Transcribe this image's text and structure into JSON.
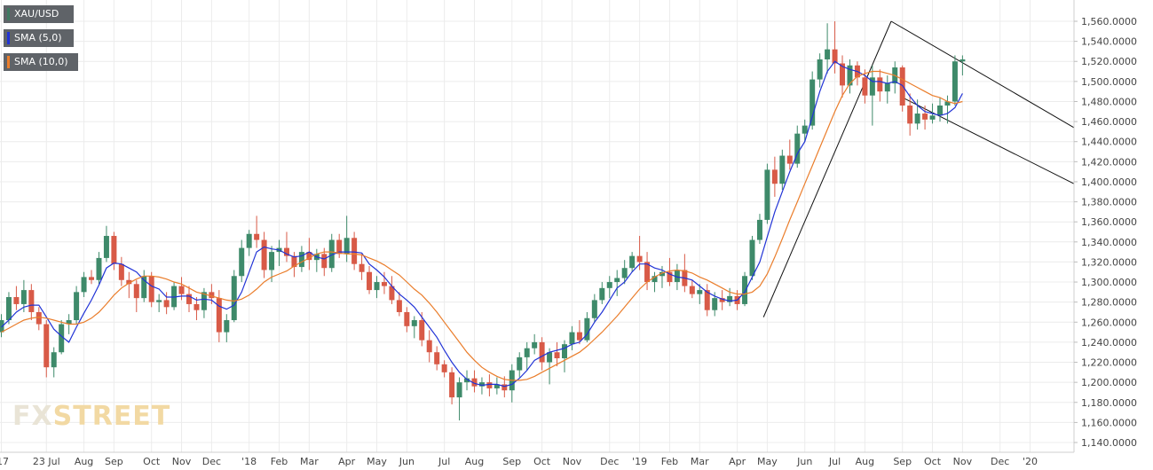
{
  "chart_data": {
    "type": "candlestick",
    "title": "",
    "ylim": [
      1140,
      1570
    ],
    "y_ticks": [
      "1,560.0000",
      "1,540.0000",
      "1,520.0000",
      "1,500.0000",
      "1,480.0000",
      "1,460.0000",
      "1,440.0000",
      "1,420.0000",
      "1,400.0000",
      "1,380.0000",
      "1,360.0000",
      "1,340.0000",
      "1,320.0000",
      "1,300.0000",
      "1,280.0000",
      "1,260.0000",
      "1,240.0000",
      "1,220.0000",
      "1,200.0000",
      "1,180.0000",
      "1,160.0000",
      "1,140.0000"
    ],
    "x_ticks": [
      {
        "label": "'17",
        "i": 0
      },
      {
        "label": "23 Jul",
        "i": 6
      },
      {
        "label": "Aug",
        "i": 11
      },
      {
        "label": "Sep",
        "i": 15
      },
      {
        "label": "Oct",
        "i": 20
      },
      {
        "label": "Nov",
        "i": 24
      },
      {
        "label": "Dec",
        "i": 28
      },
      {
        "label": "'18",
        "i": 33
      },
      {
        "label": "Feb",
        "i": 37
      },
      {
        "label": "Mar",
        "i": 41
      },
      {
        "label": "Apr",
        "i": 46
      },
      {
        "label": "May",
        "i": 50
      },
      {
        "label": "Jun",
        "i": 54
      },
      {
        "label": "Jul",
        "i": 59
      },
      {
        "label": "Aug",
        "i": 63
      },
      {
        "label": "Sep",
        "i": 68
      },
      {
        "label": "Oct",
        "i": 72
      },
      {
        "label": "Nov",
        "i": 76
      },
      {
        "label": "Dec",
        "i": 81
      },
      {
        "label": "'19",
        "i": 85
      },
      {
        "label": "Feb",
        "i": 89
      },
      {
        "label": "Mar",
        "i": 93
      },
      {
        "label": "Apr",
        "i": 98
      },
      {
        "label": "May",
        "i": 102
      },
      {
        "label": "Jun",
        "i": 107
      },
      {
        "label": "Jul",
        "i": 111
      },
      {
        "label": "Aug",
        "i": 115
      },
      {
        "label": "Sep",
        "i": 120
      },
      {
        "label": "Oct",
        "i": 124
      },
      {
        "label": "Nov",
        "i": 128
      },
      {
        "label": "Dec",
        "i": 133
      },
      {
        "label": "'20",
        "i": 137
      }
    ],
    "candles": [
      [
        1250,
        1268,
        1245,
        1262
      ],
      [
        1262,
        1290,
        1258,
        1285
      ],
      [
        1285,
        1296,
        1272,
        1278
      ],
      [
        1278,
        1302,
        1270,
        1292
      ],
      [
        1292,
        1298,
        1262,
        1270
      ],
      [
        1270,
        1275,
        1252,
        1258
      ],
      [
        1258,
        1262,
        1205,
        1215
      ],
      [
        1215,
        1235,
        1205,
        1230
      ],
      [
        1230,
        1262,
        1228,
        1258
      ],
      [
        1258,
        1268,
        1248,
        1262
      ],
      [
        1262,
        1296,
        1258,
        1290
      ],
      [
        1290,
        1310,
        1285,
        1305
      ],
      [
        1305,
        1312,
        1298,
        1302
      ],
      [
        1302,
        1330,
        1298,
        1324
      ],
      [
        1324,
        1356,
        1320,
        1346
      ],
      [
        1346,
        1350,
        1312,
        1318
      ],
      [
        1318,
        1325,
        1296,
        1302
      ],
      [
        1302,
        1310,
        1284,
        1298
      ],
      [
        1298,
        1302,
        1270,
        1284
      ],
      [
        1284,
        1312,
        1280,
        1306
      ],
      [
        1306,
        1310,
        1275,
        1280
      ],
      [
        1280,
        1288,
        1270,
        1282
      ],
      [
        1282,
        1290,
        1268,
        1275
      ],
      [
        1275,
        1300,
        1272,
        1296
      ],
      [
        1296,
        1305,
        1282,
        1288
      ],
      [
        1288,
        1296,
        1270,
        1278
      ],
      [
        1278,
        1285,
        1262,
        1272
      ],
      [
        1272,
        1294,
        1264,
        1290
      ],
      [
        1290,
        1298,
        1278,
        1284
      ],
      [
        1284,
        1292,
        1240,
        1250
      ],
      [
        1250,
        1268,
        1240,
        1262
      ],
      [
        1262,
        1312,
        1260,
        1306
      ],
      [
        1306,
        1342,
        1300,
        1334
      ],
      [
        1334,
        1352,
        1326,
        1348
      ],
      [
        1348,
        1366,
        1334,
        1342
      ],
      [
        1342,
        1350,
        1304,
        1312
      ],
      [
        1312,
        1336,
        1300,
        1330
      ],
      [
        1330,
        1342,
        1316,
        1334
      ],
      [
        1334,
        1350,
        1320,
        1326
      ],
      [
        1326,
        1330,
        1305,
        1315
      ],
      [
        1315,
        1336,
        1310,
        1330
      ],
      [
        1330,
        1344,
        1312,
        1322
      ],
      [
        1322,
        1333,
        1310,
        1328
      ],
      [
        1328,
        1334,
        1306,
        1314
      ],
      [
        1314,
        1348,
        1310,
        1342
      ],
      [
        1342,
        1348,
        1324,
        1328
      ],
      [
        1328,
        1366,
        1320,
        1344
      ],
      [
        1344,
        1350,
        1312,
        1318
      ],
      [
        1318,
        1328,
        1302,
        1310
      ],
      [
        1310,
        1316,
        1288,
        1292
      ],
      [
        1292,
        1306,
        1284,
        1300
      ],
      [
        1300,
        1310,
        1288,
        1296
      ],
      [
        1296,
        1306,
        1278,
        1282
      ],
      [
        1282,
        1290,
        1266,
        1270
      ],
      [
        1270,
        1275,
        1250,
        1256
      ],
      [
        1256,
        1266,
        1244,
        1262
      ],
      [
        1262,
        1270,
        1236,
        1242
      ],
      [
        1242,
        1252,
        1220,
        1230
      ],
      [
        1230,
        1236,
        1212,
        1218
      ],
      [
        1218,
        1222,
        1205,
        1210
      ],
      [
        1210,
        1215,
        1178,
        1185
      ],
      [
        1185,
        1205,
        1162,
        1200
      ],
      [
        1200,
        1212,
        1192,
        1204
      ],
      [
        1204,
        1212,
        1190,
        1196
      ],
      [
        1196,
        1205,
        1188,
        1200
      ],
      [
        1200,
        1208,
        1186,
        1194
      ],
      [
        1194,
        1205,
        1188,
        1198
      ],
      [
        1198,
        1206,
        1185,
        1192
      ],
      [
        1192,
        1218,
        1180,
        1212
      ],
      [
        1212,
        1230,
        1205,
        1225
      ],
      [
        1225,
        1240,
        1212,
        1234
      ],
      [
        1234,
        1248,
        1228,
        1240
      ],
      [
        1240,
        1245,
        1212,
        1220
      ],
      [
        1220,
        1234,
        1198,
        1230
      ],
      [
        1230,
        1240,
        1216,
        1224
      ],
      [
        1224,
        1242,
        1210,
        1238
      ],
      [
        1238,
        1256,
        1232,
        1250
      ],
      [
        1250,
        1262,
        1238,
        1242
      ],
      [
        1242,
        1270,
        1240,
        1264
      ],
      [
        1264,
        1288,
        1260,
        1282
      ],
      [
        1282,
        1300,
        1278,
        1294
      ],
      [
        1294,
        1306,
        1284,
        1300
      ],
      [
        1300,
        1312,
        1286,
        1304
      ],
      [
        1304,
        1322,
        1298,
        1314
      ],
      [
        1314,
        1330,
        1310,
        1326
      ],
      [
        1326,
        1346,
        1312,
        1320
      ],
      [
        1320,
        1330,
        1292,
        1300
      ],
      [
        1300,
        1310,
        1290,
        1306
      ],
      [
        1306,
        1316,
        1294,
        1310
      ],
      [
        1310,
        1324,
        1296,
        1300
      ],
      [
        1300,
        1318,
        1292,
        1312
      ],
      [
        1312,
        1328,
        1290,
        1296
      ],
      [
        1296,
        1302,
        1284,
        1288
      ],
      [
        1288,
        1298,
        1278,
        1292
      ],
      [
        1292,
        1298,
        1266,
        1272
      ],
      [
        1272,
        1290,
        1266,
        1284
      ],
      [
        1284,
        1292,
        1272,
        1280
      ],
      [
        1280,
        1294,
        1276,
        1286
      ],
      [
        1286,
        1292,
        1272,
        1278
      ],
      [
        1278,
        1310,
        1276,
        1306
      ],
      [
        1306,
        1346,
        1302,
        1342
      ],
      [
        1342,
        1368,
        1338,
        1362
      ],
      [
        1362,
        1418,
        1358,
        1412
      ],
      [
        1412,
        1425,
        1385,
        1398
      ],
      [
        1398,
        1432,
        1392,
        1426
      ],
      [
        1426,
        1442,
        1412,
        1418
      ],
      [
        1418,
        1456,
        1414,
        1448
      ],
      [
        1448,
        1462,
        1440,
        1456
      ],
      [
        1456,
        1510,
        1452,
        1502
      ],
      [
        1502,
        1528,
        1494,
        1522
      ],
      [
        1522,
        1558,
        1508,
        1532
      ],
      [
        1532,
        1560,
        1508,
        1518
      ],
      [
        1518,
        1526,
        1484,
        1496
      ],
      [
        1496,
        1522,
        1488,
        1516
      ],
      [
        1516,
        1520,
        1496,
        1504
      ],
      [
        1504,
        1512,
        1478,
        1486
      ],
      [
        1486,
        1516,
        1456,
        1504
      ],
      [
        1504,
        1512,
        1480,
        1490
      ],
      [
        1490,
        1506,
        1478,
        1498
      ],
      [
        1498,
        1520,
        1488,
        1514
      ],
      [
        1514,
        1516,
        1470,
        1476
      ],
      [
        1476,
        1488,
        1446,
        1458
      ],
      [
        1458,
        1482,
        1452,
        1468
      ],
      [
        1468,
        1476,
        1452,
        1462
      ],
      [
        1462,
        1478,
        1458,
        1466
      ],
      [
        1466,
        1484,
        1460,
        1476
      ],
      [
        1476,
        1486,
        1458,
        1480
      ],
      [
        1480,
        1526,
        1476,
        1520
      ],
      [
        1520,
        1526,
        1506,
        1522
      ]
    ],
    "series": [
      {
        "name": "SMA (5,0)",
        "color": "#2133d6",
        "values": [
          1255,
          1262,
          1270,
          1275,
          1277,
          1277,
          1265,
          1253,
          1246,
          1240,
          1255,
          1269,
          1282,
          1297,
          1314,
          1319,
          1318,
          1314,
          1310,
          1302,
          1296,
          1293,
          1285,
          1285,
          1286,
          1286,
          1282,
          1283,
          1282,
          1276,
          1273,
          1277,
          1290,
          1310,
          1330,
          1335,
          1333,
          1332,
          1328,
          1325,
          1326,
          1330,
          1325,
          1323,
          1327,
          1330,
          1330,
          1330,
          1329,
          1318,
          1312,
          1305,
          1296,
          1288,
          1282,
          1275,
          1265,
          1255,
          1245,
          1232,
          1220,
          1210,
          1203,
          1199,
          1197,
          1198,
          1198,
          1196,
          1198,
          1204,
          1212,
          1222,
          1226,
          1230,
          1232,
          1234,
          1238,
          1240,
          1248,
          1260,
          1270,
          1282,
          1294,
          1300,
          1310,
          1318,
          1318,
          1314,
          1312,
          1308,
          1305,
          1304,
          1302,
          1296,
          1290,
          1286,
          1283,
          1281,
          1282,
          1290,
          1305,
          1320,
          1345,
          1370,
          1390,
          1410,
          1428,
          1440,
          1465,
          1490,
          1510,
          1520,
          1515,
          1512,
          1510,
          1506,
          1500,
          1500,
          1498,
          1500,
          1496,
          1485,
          1476,
          1470,
          1468,
          1466,
          1468,
          1474,
          1488
        ]
      },
      {
        "name": "SMA (10,0)",
        "color": "#ea7d2b",
        "values": [
          1250,
          1254,
          1258,
          1262,
          1264,
          1265,
          1264,
          1262,
          1260,
          1258,
          1258,
          1260,
          1264,
          1270,
          1278,
          1287,
          1294,
          1299,
          1303,
          1306,
          1306,
          1305,
          1303,
          1300,
          1298,
          1294,
          1290,
          1288,
          1286,
          1284,
          1282,
          1281,
          1283,
          1287,
          1293,
          1300,
          1305,
          1308,
          1311,
          1316,
          1320,
          1324,
          1328,
          1330,
          1330,
          1329,
          1328,
          1328,
          1327,
          1324,
          1321,
          1317,
          1312,
          1307,
          1300,
          1293,
          1287,
          1279,
          1270,
          1260,
          1250,
          1240,
          1230,
          1222,
          1215,
          1210,
          1206,
          1203,
          1202,
          1202,
          1203,
          1206,
          1210,
          1214,
          1218,
          1222,
          1226,
          1230,
          1236,
          1243,
          1250,
          1258,
          1266,
          1275,
          1284,
          1293,
          1300,
          1305,
          1309,
          1311,
          1312,
          1311,
          1309,
          1305,
          1302,
          1298,
          1294,
          1290,
          1288,
          1288,
          1290,
          1296,
          1308,
          1325,
          1343,
          1362,
          1380,
          1398,
          1416,
          1434,
          1452,
          1470,
          1486,
          1498,
          1505,
          1508,
          1510,
          1510,
          1508,
          1506,
          1502,
          1498,
          1494,
          1490,
          1486,
          1484,
          1480,
          1478,
          1480
        ]
      }
    ],
    "trendlines": [
      {
        "from": [
          101.5,
          1265
        ],
        "to": [
          118.5,
          1560
        ]
      },
      {
        "from": [
          118.5,
          1560
        ],
        "to": [
          150,
          1454
        ]
      },
      {
        "from": [
          120,
          1484
        ],
        "to": [
          150,
          1398
        ]
      }
    ],
    "legend": [
      {
        "label": "XAU/USD",
        "color": "#3e7a61"
      },
      {
        "label": "SMA (5,0)",
        "color": "#2133d6"
      },
      {
        "label": "SMA (10,0)",
        "color": "#ea7d2b"
      }
    ],
    "up_color": "#3e8a6a",
    "down_color": "#d85a47"
  },
  "watermark": {
    "fx": "FX",
    "street": "STREET"
  }
}
